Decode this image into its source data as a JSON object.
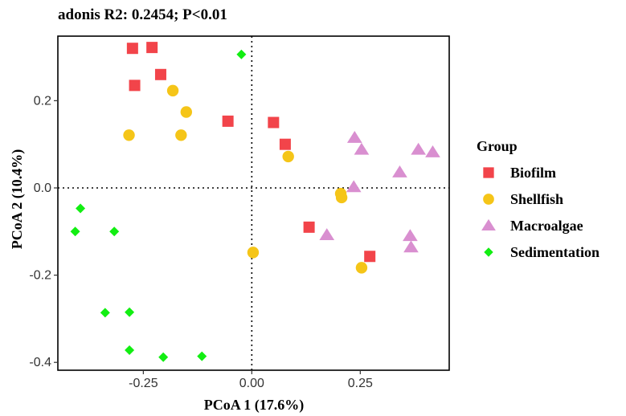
{
  "chart_data": {
    "type": "scatter",
    "title": "adonis R2: 0.2454; P<0.01",
    "xlabel": "PCoA 1 (17.6%)",
    "ylabel": "PCoA 2 (10.4%)",
    "xlim": [
      -0.447,
      0.455
    ],
    "ylim": [
      -0.418,
      0.348
    ],
    "x_ticks": [
      {
        "value": -0.25,
        "label": "-0.25"
      },
      {
        "value": 0.0,
        "label": "0.00"
      },
      {
        "value": 0.25,
        "label": "0.25"
      }
    ],
    "y_ticks": [
      {
        "value": 0.2,
        "label": "0.2"
      },
      {
        "value": 0.0,
        "label": "0.0"
      },
      {
        "value": -0.2,
        "label": "-0.2"
      },
      {
        "value": -0.4,
        "label": "-0.4"
      }
    ],
    "reference_lines": {
      "x": 0,
      "y": 0,
      "style": "dotted"
    },
    "legend": {
      "title": "Group",
      "position": "right"
    },
    "series": [
      {
        "name": "Biofilm",
        "shape": "square",
        "color": "#f2444a",
        "points": [
          [
            -0.275,
            0.32
          ],
          [
            -0.23,
            0.322
          ],
          [
            -0.27,
            0.235
          ],
          [
            -0.21,
            0.26
          ],
          [
            -0.055,
            0.153
          ],
          [
            0.05,
            0.15
          ],
          [
            0.077,
            0.1
          ],
          [
            0.132,
            -0.09
          ],
          [
            0.272,
            -0.157
          ]
        ]
      },
      {
        "name": "Shellfish",
        "shape": "circle",
        "color": "#f5c518",
        "points": [
          [
            -0.283,
            0.121
          ],
          [
            -0.182,
            0.223
          ],
          [
            -0.151,
            0.174
          ],
          [
            -0.163,
            0.121
          ],
          [
            0.084,
            0.072
          ],
          [
            0.205,
            -0.013
          ],
          [
            0.207,
            -0.022
          ],
          [
            0.003,
            -0.148
          ],
          [
            0.253,
            -0.183
          ]
        ]
      },
      {
        "name": "Macroalgae",
        "shape": "triangle",
        "color": "#d98fd0",
        "points": [
          [
            0.237,
            0.115
          ],
          [
            0.253,
            0.088
          ],
          [
            0.384,
            0.088
          ],
          [
            0.417,
            0.082
          ],
          [
            0.341,
            0.036
          ],
          [
            0.235,
            0.002
          ],
          [
            0.173,
            -0.108
          ],
          [
            0.365,
            -0.11
          ],
          [
            0.367,
            -0.136
          ]
        ]
      },
      {
        "name": "Sedimentation",
        "shape": "diamond",
        "color": "#12ee12",
        "points": [
          [
            -0.024,
            0.306
          ],
          [
            -0.395,
            -0.047
          ],
          [
            -0.407,
            -0.1
          ],
          [
            -0.317,
            -0.1
          ],
          [
            -0.338,
            -0.286
          ],
          [
            -0.282,
            -0.285
          ],
          [
            -0.282,
            -0.372
          ],
          [
            -0.204,
            -0.388
          ],
          [
            -0.115,
            -0.386
          ]
        ]
      }
    ]
  }
}
